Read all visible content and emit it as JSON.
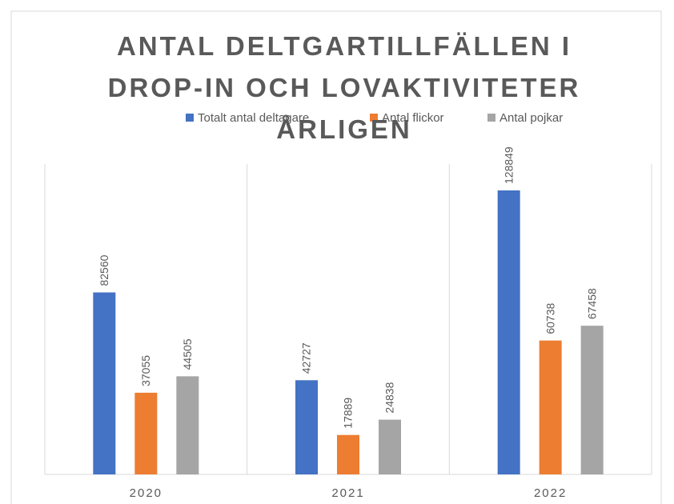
{
  "chart_data": {
    "type": "bar",
    "title": "ANTAL DELTGARTILLFÄLLEN I DROP-IN OCH LOVAKTIVITETER ÅRLIGEN",
    "categories": [
      "2020",
      "2021",
      "2022"
    ],
    "series": [
      {
        "name": "Totalt antal deltagare",
        "color": "#4472c4",
        "values": [
          82560,
          42727,
          128849
        ]
      },
      {
        "name": "Antal flickor",
        "color": "#ed7d31",
        "values": [
          37055,
          17889,
          60738
        ]
      },
      {
        "name": "Antal pojkar",
        "color": "#a5a5a5",
        "values": [
          44505,
          24838,
          67458
        ]
      }
    ],
    "legend": "top"
  }
}
